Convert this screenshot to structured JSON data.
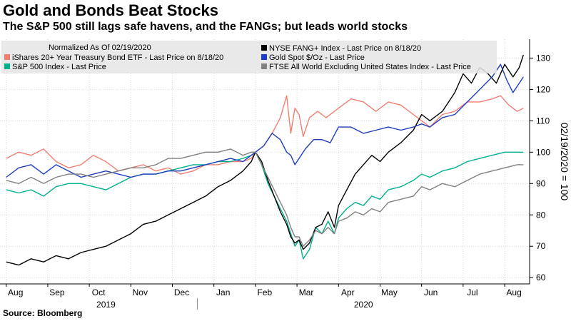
{
  "chart_data": {
    "type": "line",
    "title": "Gold and Bonds Beat Stocks",
    "subtitle": "The S&P 500 still lags safe havens, and the FANGs; but leads world stocks",
    "source": "Source: Bloomberg",
    "normalization_note": "Normalized As Of 02/19/2020",
    "ylabel": "02/19/2020 = 100",
    "ylim": [
      58,
      136
    ],
    "y_ticks": [
      60,
      70,
      80,
      90,
      100,
      110,
      120,
      130
    ],
    "y_tick_labels": [
      "60",
      "70",
      "80",
      "90",
      "100",
      "110",
      "120",
      "130"
    ],
    "grid": true,
    "x_month_ticks": [
      {
        "label": "Aug",
        "x": 0.0
      },
      {
        "label": "Sep",
        "x": 1.0
      },
      {
        "label": "Oct",
        "x": 2.0
      },
      {
        "label": "Nov",
        "x": 3.0
      },
      {
        "label": "Dec",
        "x": 4.0
      },
      {
        "label": "Jan",
        "x": 5.0
      },
      {
        "label": "Feb",
        "x": 6.0
      },
      {
        "label": "Mar",
        "x": 7.0
      },
      {
        "label": "Apr",
        "x": 8.0
      },
      {
        "label": "May",
        "x": 9.0
      },
      {
        "label": "Jun",
        "x": 10.0
      },
      {
        "label": "Jul",
        "x": 11.0
      },
      {
        "label": "Aug",
        "x": 12.0
      }
    ],
    "x_year_labels": [
      {
        "label": "2019",
        "x": 2.4
      },
      {
        "label": "2020",
        "x": 8.6
      }
    ],
    "xlim": [
      -0.15,
      12.6
    ],
    "series": [
      {
        "name": "iShares 20+ Year Treasury Bond ETF - Last Price on 8/18/20",
        "color": "#f07f73",
        "points": [
          [
            0,
            98
          ],
          [
            0.3,
            100
          ],
          [
            0.6,
            99
          ],
          [
            0.9,
            101
          ],
          [
            1.2,
            97
          ],
          [
            1.5,
            95
          ],
          [
            1.8,
            96
          ],
          [
            2.1,
            99
          ],
          [
            2.4,
            97
          ],
          [
            2.7,
            94
          ],
          [
            3.0,
            95
          ],
          [
            3.3,
            96
          ],
          [
            3.6,
            94
          ],
          [
            3.9,
            95
          ],
          [
            4.2,
            93
          ],
          [
            4.5,
            94
          ],
          [
            4.8,
            96
          ],
          [
            5.1,
            96
          ],
          [
            5.4,
            97
          ],
          [
            5.7,
            97
          ],
          [
            5.9,
            98
          ],
          [
            6.0,
            100
          ],
          [
            6.2,
            102
          ],
          [
            6.4,
            106
          ],
          [
            6.6,
            111
          ],
          [
            6.75,
            118
          ],
          [
            6.85,
            106
          ],
          [
            6.95,
            114
          ],
          [
            7.05,
            112
          ],
          [
            7.15,
            105
          ],
          [
            7.3,
            111
          ],
          [
            7.5,
            113
          ],
          [
            7.7,
            111
          ],
          [
            8.0,
            114
          ],
          [
            8.3,
            117
          ],
          [
            8.6,
            116
          ],
          [
            8.9,
            113
          ],
          [
            9.2,
            116
          ],
          [
            9.5,
            115
          ],
          [
            9.8,
            112
          ],
          [
            10.0,
            110
          ],
          [
            10.2,
            108
          ],
          [
            10.5,
            112
          ],
          [
            10.8,
            113
          ],
          [
            11.1,
            116
          ],
          [
            11.4,
            116
          ],
          [
            11.7,
            117
          ],
          [
            11.9,
            118
          ],
          [
            12.1,
            115
          ],
          [
            12.3,
            113
          ],
          [
            12.45,
            114
          ]
        ]
      },
      {
        "name": "S&P 500 Index - Last Price",
        "color": "#00b08c",
        "points": [
          [
            0,
            88
          ],
          [
            0.3,
            87
          ],
          [
            0.6,
            88
          ],
          [
            0.9,
            86
          ],
          [
            1.2,
            89
          ],
          [
            1.5,
            90
          ],
          [
            1.8,
            90
          ],
          [
            2.1,
            89
          ],
          [
            2.4,
            88
          ],
          [
            2.7,
            90
          ],
          [
            3.0,
            92
          ],
          [
            3.3,
            93
          ],
          [
            3.6,
            93
          ],
          [
            3.9,
            94
          ],
          [
            4.2,
            95
          ],
          [
            4.5,
            96
          ],
          [
            4.8,
            96
          ],
          [
            5.1,
            97
          ],
          [
            5.4,
            97
          ],
          [
            5.7,
            98
          ],
          [
            5.9,
            99
          ],
          [
            6.0,
            100
          ],
          [
            6.15,
            96
          ],
          [
            6.3,
            90
          ],
          [
            6.45,
            86
          ],
          [
            6.6,
            82
          ],
          [
            6.75,
            78
          ],
          [
            6.85,
            74
          ],
          [
            6.95,
            70
          ],
          [
            7.05,
            72
          ],
          [
            7.15,
            66
          ],
          [
            7.3,
            69
          ],
          [
            7.45,
            76
          ],
          [
            7.6,
            74
          ],
          [
            7.75,
            78
          ],
          [
            7.9,
            74
          ],
          [
            8.0,
            79
          ],
          [
            8.2,
            82
          ],
          [
            8.4,
            84
          ],
          [
            8.6,
            83
          ],
          [
            8.8,
            86
          ],
          [
            9.0,
            85
          ],
          [
            9.2,
            88
          ],
          [
            9.5,
            89
          ],
          [
            9.8,
            91
          ],
          [
            10.0,
            93
          ],
          [
            10.2,
            92
          ],
          [
            10.5,
            94
          ],
          [
            10.8,
            95
          ],
          [
            11.1,
            97
          ],
          [
            11.4,
            98
          ],
          [
            11.7,
            99
          ],
          [
            12.0,
            100
          ],
          [
            12.3,
            100
          ],
          [
            12.45,
            100
          ]
        ]
      },
      {
        "name": "NYSE FANG+ Index - Last Price on 8/18/20",
        "color": "#000000",
        "points": [
          [
            0,
            65
          ],
          [
            0.3,
            64
          ],
          [
            0.6,
            66
          ],
          [
            0.9,
            65
          ],
          [
            1.2,
            67
          ],
          [
            1.5,
            66
          ],
          [
            1.8,
            68
          ],
          [
            2.1,
            69
          ],
          [
            2.4,
            70
          ],
          [
            2.7,
            72
          ],
          [
            3.0,
            74
          ],
          [
            3.3,
            77
          ],
          [
            3.6,
            78
          ],
          [
            3.9,
            80
          ],
          [
            4.2,
            82
          ],
          [
            4.5,
            84
          ],
          [
            4.8,
            86
          ],
          [
            5.1,
            89
          ],
          [
            5.4,
            91
          ],
          [
            5.7,
            94
          ],
          [
            5.9,
            97
          ],
          [
            6.0,
            100
          ],
          [
            6.15,
            97
          ],
          [
            6.3,
            91
          ],
          [
            6.45,
            86
          ],
          [
            6.6,
            81
          ],
          [
            6.75,
            77
          ],
          [
            6.85,
            73
          ],
          [
            6.95,
            71
          ],
          [
            7.05,
            72
          ],
          [
            7.15,
            69
          ],
          [
            7.3,
            71
          ],
          [
            7.45,
            76
          ],
          [
            7.6,
            77
          ],
          [
            7.75,
            81
          ],
          [
            7.9,
            76
          ],
          [
            8.0,
            83
          ],
          [
            8.2,
            88
          ],
          [
            8.4,
            93
          ],
          [
            8.6,
            96
          ],
          [
            8.8,
            99
          ],
          [
            9.0,
            97
          ],
          [
            9.2,
            100
          ],
          [
            9.5,
            103
          ],
          [
            9.8,
            107
          ],
          [
            10.0,
            112
          ],
          [
            10.2,
            110
          ],
          [
            10.5,
            113
          ],
          [
            10.8,
            119
          ],
          [
            11.0,
            125
          ],
          [
            11.2,
            122
          ],
          [
            11.4,
            127
          ],
          [
            11.6,
            125
          ],
          [
            11.8,
            122
          ],
          [
            12.0,
            128
          ],
          [
            12.2,
            124
          ],
          [
            12.35,
            127
          ],
          [
            12.45,
            131
          ]
        ]
      },
      {
        "name": "Gold Spot $/Oz - Last Price",
        "color": "#1f3dbf",
        "points": [
          [
            0,
            92
          ],
          [
            0.3,
            95
          ],
          [
            0.6,
            96
          ],
          [
            0.9,
            93
          ],
          [
            1.2,
            96
          ],
          [
            1.5,
            94
          ],
          [
            1.8,
            92
          ],
          [
            2.1,
            93
          ],
          [
            2.4,
            94
          ],
          [
            2.7,
            93
          ],
          [
            3.0,
            92
          ],
          [
            3.3,
            93
          ],
          [
            3.6,
            93
          ],
          [
            3.9,
            94
          ],
          [
            4.2,
            94
          ],
          [
            4.5,
            95
          ],
          [
            4.8,
            96
          ],
          [
            5.1,
            97
          ],
          [
            5.4,
            98
          ],
          [
            5.7,
            97
          ],
          [
            5.9,
            99
          ],
          [
            6.0,
            100
          ],
          [
            6.2,
            102
          ],
          [
            6.4,
            106
          ],
          [
            6.6,
            104
          ],
          [
            6.75,
            100
          ],
          [
            6.85,
            99
          ],
          [
            6.95,
            96
          ],
          [
            7.05,
            98
          ],
          [
            7.2,
            101
          ],
          [
            7.4,
            104
          ],
          [
            7.6,
            104
          ],
          [
            7.8,
            103
          ],
          [
            8.0,
            108
          ],
          [
            8.3,
            108
          ],
          [
            8.6,
            106
          ],
          [
            8.9,
            107
          ],
          [
            9.2,
            108
          ],
          [
            9.5,
            107
          ],
          [
            9.8,
            108
          ],
          [
            10.0,
            109
          ],
          [
            10.2,
            108
          ],
          [
            10.5,
            111
          ],
          [
            10.8,
            112
          ],
          [
            11.1,
            116
          ],
          [
            11.4,
            120
          ],
          [
            11.7,
            124
          ],
          [
            11.9,
            128
          ],
          [
            12.05,
            123
          ],
          [
            12.2,
            119
          ],
          [
            12.35,
            122
          ],
          [
            12.45,
            124
          ]
        ]
      },
      {
        "name": "FTSE All World Excluding United States Index - Last Price",
        "color": "#808080",
        "points": [
          [
            0,
            91
          ],
          [
            0.3,
            90
          ],
          [
            0.6,
            92
          ],
          [
            0.9,
            90
          ],
          [
            1.2,
            92
          ],
          [
            1.5,
            93
          ],
          [
            1.8,
            93
          ],
          [
            2.1,
            92
          ],
          [
            2.4,
            93
          ],
          [
            2.7,
            94
          ],
          [
            3.0,
            95
          ],
          [
            3.3,
            95
          ],
          [
            3.6,
            96
          ],
          [
            3.9,
            98
          ],
          [
            4.2,
            98
          ],
          [
            4.5,
            99
          ],
          [
            4.8,
            100
          ],
          [
            5.1,
            100
          ],
          [
            5.4,
            101
          ],
          [
            5.7,
            99
          ],
          [
            5.9,
            100
          ],
          [
            6.0,
            100
          ],
          [
            6.15,
            96
          ],
          [
            6.3,
            92
          ],
          [
            6.45,
            88
          ],
          [
            6.6,
            84
          ],
          [
            6.75,
            80
          ],
          [
            6.85,
            76
          ],
          [
            6.95,
            73
          ],
          [
            7.05,
            73
          ],
          [
            7.15,
            70
          ],
          [
            7.3,
            72
          ],
          [
            7.45,
            75
          ],
          [
            7.6,
            74
          ],
          [
            7.75,
            76
          ],
          [
            7.9,
            74
          ],
          [
            8.0,
            78
          ],
          [
            8.2,
            79
          ],
          [
            8.4,
            81
          ],
          [
            8.6,
            80
          ],
          [
            8.8,
            82
          ],
          [
            9.0,
            81
          ],
          [
            9.2,
            84
          ],
          [
            9.5,
            85
          ],
          [
            9.8,
            86
          ],
          [
            10.0,
            89
          ],
          [
            10.2,
            88
          ],
          [
            10.5,
            90
          ],
          [
            10.8,
            89
          ],
          [
            11.1,
            91
          ],
          [
            11.4,
            93
          ],
          [
            11.7,
            94
          ],
          [
            12.0,
            95
          ],
          [
            12.3,
            96
          ],
          [
            12.45,
            96
          ]
        ]
      }
    ],
    "legend": {
      "placement": "top",
      "left_column": [
        "iShares 20+ Year Treasury Bond ETF - Last Price on 8/18/20",
        "S&P 500 Index - Last Price"
      ],
      "right_column": [
        "NYSE FANG+ Index - Last Price on 8/18/20",
        "Gold Spot $/Oz - Last Price",
        "FTSE All World Excluding United States Index - Last Price"
      ]
    }
  }
}
